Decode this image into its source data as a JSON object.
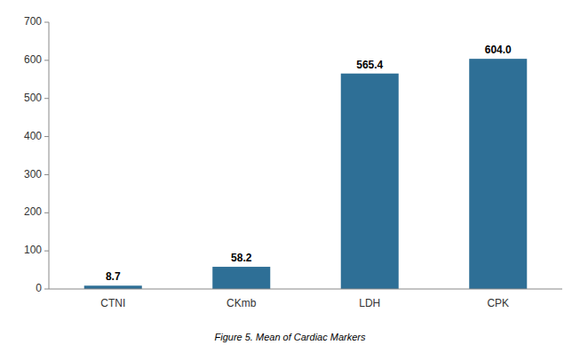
{
  "chart_data": {
    "type": "bar",
    "title": "Figure 5. Mean of Cardiac Markers",
    "categories": [
      "CTNI",
      "CKmb",
      "LDH",
      "CPK"
    ],
    "values": [
      8.7,
      58.2,
      565.4,
      604.0
    ],
    "value_labels": [
      "8.7",
      "58.2",
      "565.4",
      "604.0"
    ],
    "data_labels": true,
    "color": "#2e6f96",
    "ylim": [
      0,
      700
    ],
    "yticks": [
      0,
      100,
      200,
      300,
      400,
      500,
      600,
      700
    ],
    "grid": false
  }
}
